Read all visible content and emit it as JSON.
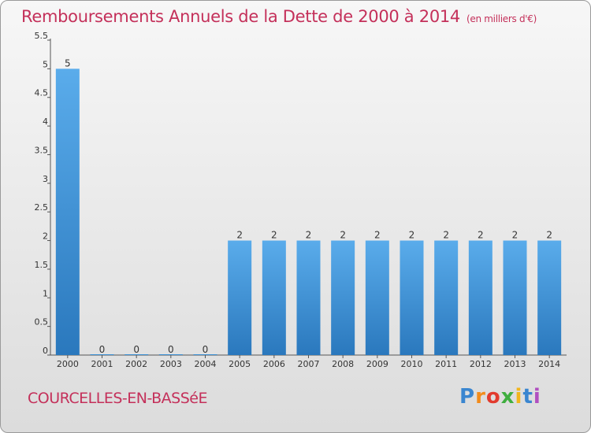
{
  "header": {
    "title": "Remboursements Annuels de la Dette de 2000 à 2014",
    "unit": "(en milliers d'€)"
  },
  "footer": {
    "town": "COURCELLES-EN-BASSéE",
    "logo_letters": [
      "P",
      "r",
      "o",
      "x",
      "i",
      "t",
      "i"
    ]
  },
  "chart_data": {
    "type": "bar",
    "title": "Remboursements Annuels de la Dette de 2000 à 2014",
    "subtitle": "(en milliers d'€)",
    "xlabel": "",
    "ylabel": "",
    "categories": [
      "2000",
      "2001",
      "2002",
      "2003",
      "2004",
      "2005",
      "2006",
      "2007",
      "2008",
      "2009",
      "2010",
      "2011",
      "2012",
      "2013",
      "2014"
    ],
    "values": [
      5,
      0,
      0,
      0,
      0,
      2,
      2,
      2,
      2,
      2,
      2,
      2,
      2,
      2,
      2
    ],
    "data_labels": [
      "5",
      "0",
      "0",
      "0",
      "0",
      "2",
      "2",
      "2",
      "2",
      "2",
      "2",
      "2",
      "2",
      "2",
      "2"
    ],
    "ylim": [
      0,
      5.5
    ],
    "yticks": [
      0,
      0.5,
      1,
      1.5,
      2,
      2.5,
      3,
      3.5,
      4,
      4.5,
      5,
      5.5
    ],
    "ytick_labels": [
      "0",
      "0.5",
      "1",
      "1.5",
      "2",
      "2.5",
      "3",
      "3.5",
      "4",
      "4.5",
      "5",
      "5.5"
    ],
    "grid": false,
    "legend": "none",
    "bar_color": "#3b8fd4"
  }
}
